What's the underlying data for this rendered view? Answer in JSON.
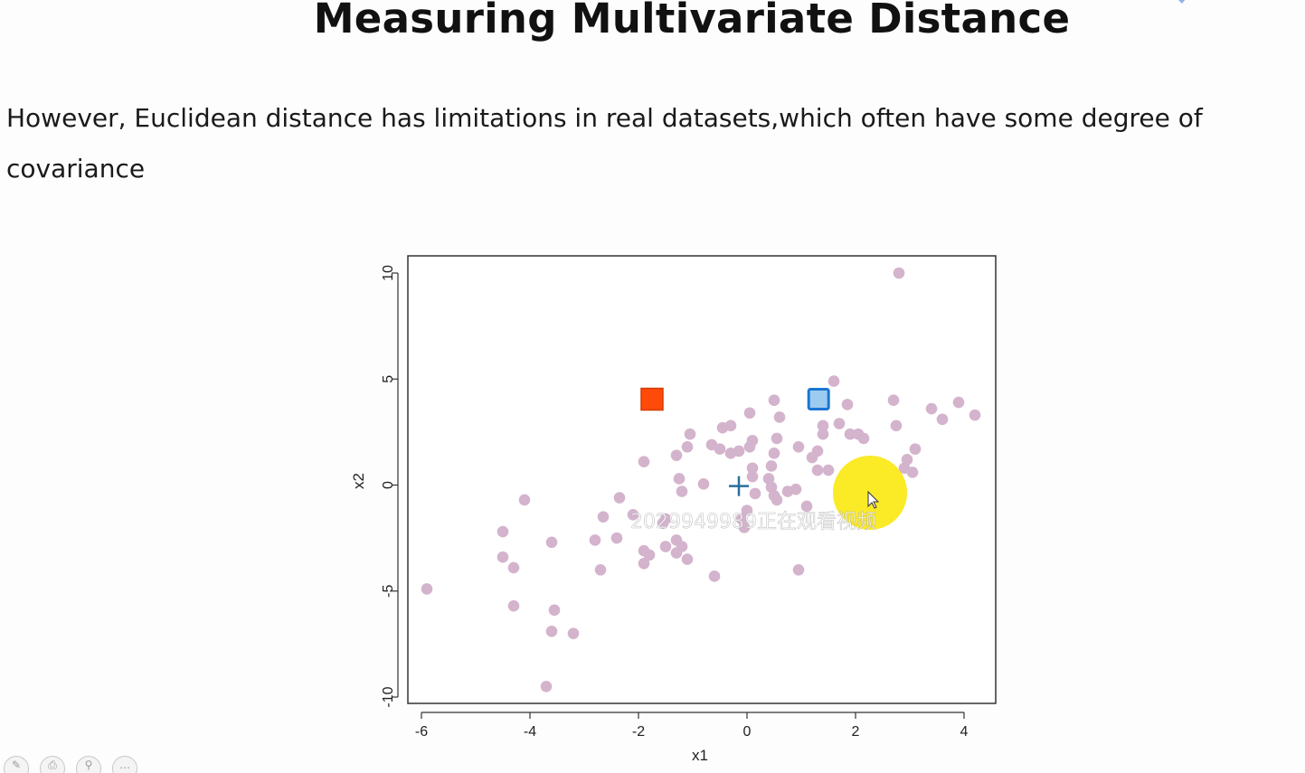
{
  "slide": {
    "title": "Measuring Multivariate Distance",
    "body": "However, Euclidean distance has limitations in real datasets,which often have some degree of covariance"
  },
  "watermark": {
    "text": "2029949989正在观看视频"
  },
  "toolbar": {
    "icons": [
      "pen-icon",
      "print-icon",
      "search-icon",
      "comment-icon"
    ]
  },
  "colors": {
    "points": "#d4b3cd",
    "orange_square": "#ff4a0a",
    "blue_square_fill": "#9ccbf0",
    "blue_square_stroke": "#1b76d2",
    "center_marker": "#2a6f9c",
    "cursor_highlight": "#fae600",
    "logo": "#8aa7e8"
  },
  "chart_data": {
    "type": "scatter",
    "title": "",
    "xlabel": "x1",
    "ylabel": "x2",
    "xlim": [
      -6.3,
      4.6
    ],
    "ylim": [
      -10.5,
      10.8
    ],
    "xticks": [
      -6,
      -4,
      -2,
      0,
      2,
      4
    ],
    "yticks": [
      -10,
      -5,
      0,
      5,
      10
    ],
    "xtick_labels": [
      "-6",
      "-4",
      "-2",
      "0",
      "2",
      "4"
    ],
    "ytick_labels": [
      "-10",
      "-5",
      "0",
      "5",
      "10"
    ],
    "grid": false,
    "points": [
      {
        "x": -5.9,
        "y": -4.9
      },
      {
        "x": -4.5,
        "y": -2.2
      },
      {
        "x": -4.5,
        "y": -3.4
      },
      {
        "x": -4.3,
        "y": -3.9
      },
      {
        "x": -4.3,
        "y": -5.7
      },
      {
        "x": -4.1,
        "y": -0.7
      },
      {
        "x": -3.6,
        "y": -2.7
      },
      {
        "x": -3.6,
        "y": -6.9
      },
      {
        "x": -3.55,
        "y": -5.9
      },
      {
        "x": -3.7,
        "y": -9.5
      },
      {
        "x": -3.2,
        "y": -7.0
      },
      {
        "x": -2.8,
        "y": -2.6
      },
      {
        "x": -2.7,
        "y": -4.0
      },
      {
        "x": -2.65,
        "y": -1.5
      },
      {
        "x": -2.35,
        "y": -0.6
      },
      {
        "x": -2.4,
        "y": -2.5
      },
      {
        "x": -2.1,
        "y": -1.4
      },
      {
        "x": -1.9,
        "y": -3.7
      },
      {
        "x": -1.9,
        "y": -3.1
      },
      {
        "x": -1.8,
        "y": -3.3
      },
      {
        "x": -1.9,
        "y": 1.1
      },
      {
        "x": -1.55,
        "y": -1.8
      },
      {
        "x": -1.5,
        "y": -1.6
      },
      {
        "x": -1.5,
        "y": -2.9
      },
      {
        "x": -1.3,
        "y": -2.6
      },
      {
        "x": -1.3,
        "y": -3.2
      },
      {
        "x": -1.2,
        "y": -2.9
      },
      {
        "x": -1.1,
        "y": -3.5
      },
      {
        "x": -1.3,
        "y": 1.4
      },
      {
        "x": -1.25,
        "y": 0.3
      },
      {
        "x": -1.2,
        "y": -0.3
      },
      {
        "x": -1.1,
        "y": 1.8
      },
      {
        "x": -1.05,
        "y": 2.4
      },
      {
        "x": -0.8,
        "y": 0.05
      },
      {
        "x": -0.65,
        "y": 1.9
      },
      {
        "x": -0.6,
        "y": -4.3
      },
      {
        "x": -0.5,
        "y": 1.7
      },
      {
        "x": -0.45,
        "y": 2.7
      },
      {
        "x": -0.3,
        "y": 2.8
      },
      {
        "x": -0.3,
        "y": 1.5
      },
      {
        "x": -0.15,
        "y": 1.6
      },
      {
        "x": 0.05,
        "y": 3.4
      },
      {
        "x": 0.05,
        "y": 1.8
      },
      {
        "x": 0.1,
        "y": 2.1
      },
      {
        "x": 0.1,
        "y": 0.8
      },
      {
        "x": 0.1,
        "y": 0.4
      },
      {
        "x": 0.15,
        "y": -0.4
      },
      {
        "x": -0.1,
        "y": -1.6
      },
      {
        "x": -0.05,
        "y": -2.0
      },
      {
        "x": 0.0,
        "y": -1.2
      },
      {
        "x": 0.5,
        "y": 1.5
      },
      {
        "x": 0.45,
        "y": 0.9
      },
      {
        "x": 0.4,
        "y": 0.3
      },
      {
        "x": 0.45,
        "y": -0.1
      },
      {
        "x": 0.5,
        "y": -0.5
      },
      {
        "x": 0.55,
        "y": -0.7
      },
      {
        "x": 0.55,
        "y": 2.2
      },
      {
        "x": 0.5,
        "y": 4.0
      },
      {
        "x": 0.6,
        "y": 3.2
      },
      {
        "x": 0.75,
        "y": -0.3
      },
      {
        "x": 0.9,
        "y": -0.2
      },
      {
        "x": 0.95,
        "y": 1.8
      },
      {
        "x": 0.95,
        "y": -4.0
      },
      {
        "x": 1.1,
        "y": -1.0
      },
      {
        "x": 1.2,
        "y": 1.3
      },
      {
        "x": 1.3,
        "y": 0.7
      },
      {
        "x": 1.3,
        "y": 1.6
      },
      {
        "x": 1.4,
        "y": 2.8
      },
      {
        "x": 1.4,
        "y": 2.4
      },
      {
        "x": 1.5,
        "y": 0.7
      },
      {
        "x": 1.6,
        "y": 4.9
      },
      {
        "x": 1.7,
        "y": 2.9
      },
      {
        "x": 1.85,
        "y": 3.8
      },
      {
        "x": 1.9,
        "y": 2.4
      },
      {
        "x": 2.05,
        "y": 2.4
      },
      {
        "x": 2.15,
        "y": 2.2
      },
      {
        "x": 2.7,
        "y": 4.0
      },
      {
        "x": 2.75,
        "y": 2.8
      },
      {
        "x": 2.8,
        "y": 10.0
      },
      {
        "x": 2.9,
        "y": 0.8
      },
      {
        "x": 2.95,
        "y": 1.2
      },
      {
        "x": 3.05,
        "y": 0.6
      },
      {
        "x": 3.1,
        "y": 1.7
      },
      {
        "x": 3.4,
        "y": 3.6
      },
      {
        "x": 3.6,
        "y": 3.1
      },
      {
        "x": 3.9,
        "y": 3.9
      },
      {
        "x": 4.2,
        "y": 3.3
      }
    ],
    "markers": [
      {
        "name": "orange-square-marker",
        "x": -1.75,
        "y": 4.05
      },
      {
        "name": "blue-square-marker",
        "x": 1.32,
        "y": 4.05
      }
    ],
    "center": {
      "x": -0.15,
      "y": -0.05
    }
  }
}
